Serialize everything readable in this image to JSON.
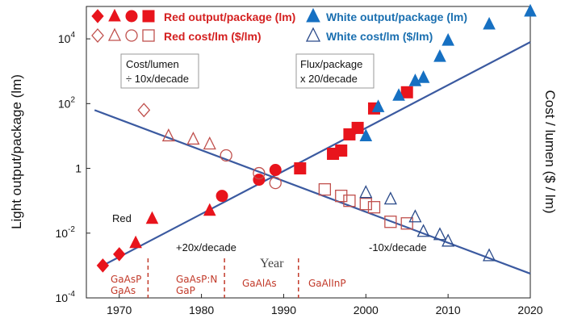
{
  "chart_data": {
    "type": "scatter",
    "title": "",
    "xlabel": "Year",
    "ylabel_left": "Light output/package (lm)",
    "ylabel_right": "Cost / lumen ($ / lm)",
    "xlim": [
      1966,
      2020
    ],
    "ylim_log10": [
      -4,
      5
    ],
    "x_ticks": [
      {
        "value": 1970,
        "label": "1970"
      },
      {
        "value": 1980,
        "label": "1980"
      },
      {
        "value": 1990,
        "label": "1990"
      },
      {
        "value": 2000,
        "label": "2000"
      },
      {
        "value": 2010,
        "label": "2010"
      },
      {
        "value": 2020,
        "label": "2020"
      }
    ],
    "y_ticks": [
      {
        "exp": 4,
        "base": "10",
        "sup": "4"
      },
      {
        "exp": 2,
        "base": "10",
        "sup": "2"
      },
      {
        "exp": 0,
        "base": "1",
        "sup": ""
      },
      {
        "exp": -2,
        "base": "10",
        "sup": "-2"
      },
      {
        "exp": -4,
        "base": "10",
        "sup": "-4"
      }
    ],
    "legend": {
      "red_output": "Red output/package (lm)",
      "red_cost": "Red cost/lm ($/lm)",
      "white_output": "White output/package (lm)",
      "white_cost": "White cost/lm ($/lm)"
    },
    "colors": {
      "red": "#e8141c",
      "red_hollow": "#c0504d",
      "blue": "#1670c2",
      "blue_hollow": "#2a4a8a",
      "trend": "#3b5aa0"
    },
    "trend_lines": [
      {
        "name": "Flux/package x 20/decade",
        "x": [
          1968,
          2020
        ],
        "log10y": [
          -3.0,
          3.9
        ]
      },
      {
        "name": "Cost/lumen ÷ 10x/decade",
        "x": [
          1967,
          2020
        ],
        "log10y": [
          1.8,
          -3.25
        ]
      }
    ],
    "series": [
      {
        "name": "Red output/package (lm)",
        "marker": "diamond",
        "filled": true,
        "color": "red",
        "points": [
          {
            "x": 1968,
            "y": -3.0
          },
          {
            "x": 1970,
            "y": -2.65
          }
        ]
      },
      {
        "name": "Red output/package (lm)",
        "marker": "triangle",
        "filled": true,
        "color": "red",
        "points": [
          {
            "x": 1972,
            "y": -2.3
          },
          {
            "x": 1974,
            "y": -1.55
          },
          {
            "x": 1981,
            "y": -1.3
          }
        ]
      },
      {
        "name": "Red output/package (lm)",
        "marker": "circle",
        "filled": true,
        "color": "red",
        "points": [
          {
            "x": 1982.5,
            "y": -0.85
          },
          {
            "x": 1987,
            "y": -0.35
          },
          {
            "x": 1989,
            "y": -0.05
          }
        ]
      },
      {
        "name": "Red output/package (lm)",
        "marker": "square",
        "filled": true,
        "color": "red",
        "points": [
          {
            "x": 1992,
            "y": 0.0
          },
          {
            "x": 1996,
            "y": 0.45
          },
          {
            "x": 1997,
            "y": 0.55
          },
          {
            "x": 1998,
            "y": 1.05
          },
          {
            "x": 1999,
            "y": 1.25
          },
          {
            "x": 2001,
            "y": 1.85
          },
          {
            "x": 2005,
            "y": 2.35
          }
        ]
      },
      {
        "name": "Red cost/lm ($/lm)",
        "marker": "diamond",
        "filled": false,
        "color": "red_hollow",
        "points": [
          {
            "x": 1973,
            "y": 1.8
          }
        ]
      },
      {
        "name": "Red cost/lm ($/lm)",
        "marker": "triangle",
        "filled": false,
        "color": "red_hollow",
        "points": [
          {
            "x": 1976,
            "y": 1.0
          },
          {
            "x": 1979,
            "y": 0.9
          },
          {
            "x": 1981,
            "y": 0.75
          }
        ]
      },
      {
        "name": "Red cost/lm ($/lm)",
        "marker": "circle",
        "filled": false,
        "color": "red_hollow",
        "points": [
          {
            "x": 1983,
            "y": 0.4
          },
          {
            "x": 1987,
            "y": -0.15
          },
          {
            "x": 1989,
            "y": -0.45
          }
        ]
      },
      {
        "name": "Red cost/lm ($/lm)",
        "marker": "square",
        "filled": false,
        "color": "red_hollow",
        "points": [
          {
            "x": 1995,
            "y": -0.65
          },
          {
            "x": 1997,
            "y": -0.85
          },
          {
            "x": 1998,
            "y": -1.0
          },
          {
            "x": 2000,
            "y": -1.1
          },
          {
            "x": 2001,
            "y": -1.2
          },
          {
            "x": 2003,
            "y": -1.65
          },
          {
            "x": 2005,
            "y": -1.7
          }
        ]
      },
      {
        "name": "White output/package (lm)",
        "marker": "triangle",
        "filled": true,
        "color": "blue",
        "points": [
          {
            "x": 2000,
            "y": 1.0
          },
          {
            "x": 2001.5,
            "y": 1.9
          },
          {
            "x": 2004,
            "y": 2.25
          },
          {
            "x": 2006,
            "y": 2.7
          },
          {
            "x": 2007,
            "y": 2.8
          },
          {
            "x": 2009,
            "y": 3.45
          },
          {
            "x": 2010,
            "y": 3.95
          },
          {
            "x": 2015,
            "y": 4.45
          },
          {
            "x": 2020,
            "y": 4.85
          }
        ]
      },
      {
        "name": "White cost/lm ($/lm)",
        "marker": "triangle",
        "filled": false,
        "color": "blue_hollow",
        "points": [
          {
            "x": 2000,
            "y": -0.75
          },
          {
            "x": 2003,
            "y": -0.95
          },
          {
            "x": 2006,
            "y": -1.5
          },
          {
            "x": 2007,
            "y": -1.95
          },
          {
            "x": 2009,
            "y": -2.05
          },
          {
            "x": 2010,
            "y": -2.25
          },
          {
            "x": 2015,
            "y": -2.7
          }
        ]
      }
    ],
    "annotations": {
      "cost_box_line1": "Cost/lumen",
      "cost_box_line2": "÷ 10x/decade",
      "flux_box_line1": "Flux/package",
      "flux_box_line2": "x 20/decade",
      "red_label": "Red",
      "up_rate": "+20x/decade",
      "down_rate": "-10x/decade",
      "year_label": "Year"
    },
    "technology_eras": [
      {
        "line1": "GaAsP",
        "line2": "GaAs"
      },
      {
        "line1": "GaAsP:N",
        "line2": "GaP"
      },
      {
        "line1": "GaAlAs",
        "line2": ""
      },
      {
        "line1": "GaAlInP",
        "line2": ""
      }
    ]
  }
}
